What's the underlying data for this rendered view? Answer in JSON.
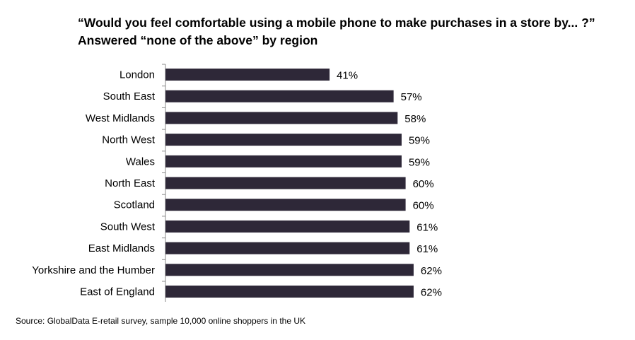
{
  "title_line1": "“Would you feel comfortable using a mobile phone to make purchases in a store by... ?”",
  "title_line2": "Answered “none of the above” by region",
  "source": "Source: GlobalData E-retail survey, sample 10,000 online  shoppers in the UK",
  "chart_data": {
    "type": "bar",
    "orientation": "horizontal",
    "categories": [
      "London",
      "South East",
      "West Midlands",
      "North West",
      "Wales",
      "North East",
      "Scotland",
      "South West",
      "East Midlands",
      "Yorkshire and the Humber",
      "East of England"
    ],
    "values": [
      41,
      57,
      58,
      59,
      59,
      60,
      60,
      61,
      61,
      62,
      62
    ],
    "data_labels": [
      "41%",
      "57%",
      "58%",
      "59%",
      "59%",
      "60%",
      "60%",
      "61%",
      "61%",
      "62%",
      "62%"
    ],
    "bar_color": "#2e2838",
    "xlim": [
      0,
      100
    ],
    "grid": false,
    "legend": false
  }
}
